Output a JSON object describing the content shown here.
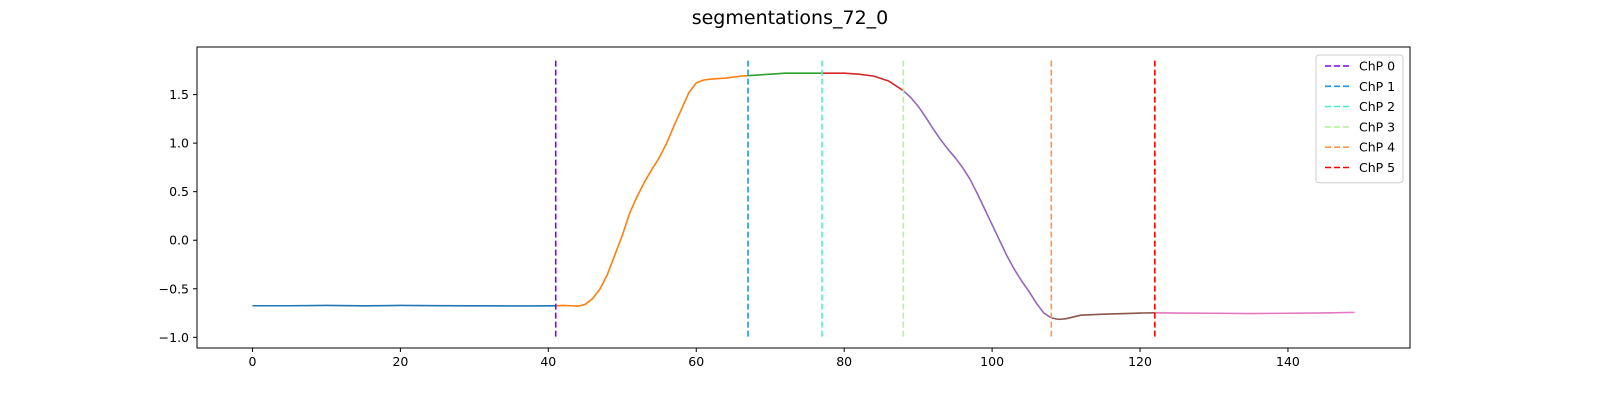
{
  "chart_data": {
    "type": "line",
    "title": "segmentations_72_0",
    "xlabel": "",
    "ylabel": "",
    "xlim": [
      -7.5,
      156.5
    ],
    "ylim": [
      -1.11,
      1.99
    ],
    "xticks": [
      0,
      20,
      40,
      60,
      80,
      100,
      120,
      140
    ],
    "yticks": [
      -1.0,
      -0.5,
      0.0,
      0.5,
      1.0,
      1.5
    ],
    "ytick_labels": [
      "−1.0",
      "−0.5",
      "0.0",
      "0.5",
      "1.0",
      "1.5"
    ],
    "grid": false,
    "legend": {
      "placement": "top-right"
    },
    "segments": [
      {
        "color": "#1f77b4",
        "points": [
          [
            0,
            -0.675
          ],
          [
            5,
            -0.675
          ],
          [
            10,
            -0.672
          ],
          [
            15,
            -0.676
          ],
          [
            20,
            -0.672
          ],
          [
            25,
            -0.674
          ],
          [
            30,
            -0.676
          ],
          [
            35,
            -0.677
          ],
          [
            38,
            -0.677
          ],
          [
            41,
            -0.676
          ]
        ]
      },
      {
        "color": "#ff7f0e",
        "points": [
          [
            41,
            -0.676
          ],
          [
            42,
            -0.672
          ],
          [
            43,
            -0.675
          ],
          [
            44,
            -0.68
          ],
          [
            45,
            -0.66
          ],
          [
            46,
            -0.6
          ],
          [
            47,
            -0.5
          ],
          [
            48,
            -0.35
          ],
          [
            49,
            -0.15
          ],
          [
            50,
            0.05
          ],
          [
            51,
            0.28
          ],
          [
            52,
            0.45
          ],
          [
            53,
            0.6
          ],
          [
            54,
            0.73
          ],
          [
            55,
            0.85
          ],
          [
            56,
            1.0
          ],
          [
            57,
            1.18
          ],
          [
            58,
            1.35
          ],
          [
            59,
            1.52
          ],
          [
            60,
            1.62
          ],
          [
            61,
            1.65
          ],
          [
            62,
            1.66
          ],
          [
            64,
            1.67
          ],
          [
            66,
            1.69
          ],
          [
            67,
            1.695
          ]
        ]
      },
      {
        "color": "#2ca02c",
        "points": [
          [
            67,
            1.695
          ],
          [
            70,
            1.71
          ],
          [
            72,
            1.72
          ],
          [
            75,
            1.72
          ],
          [
            77,
            1.72
          ]
        ]
      },
      {
        "color": "#d62728",
        "points": [
          [
            77,
            1.72
          ],
          [
            80,
            1.72
          ],
          [
            82,
            1.71
          ],
          [
            84,
            1.69
          ],
          [
            86,
            1.64
          ],
          [
            87,
            1.59
          ],
          [
            88,
            1.54
          ]
        ]
      },
      {
        "color": "#9467bd",
        "points": [
          [
            88,
            1.54
          ],
          [
            89,
            1.47
          ],
          [
            90,
            1.38
          ],
          [
            91,
            1.27
          ],
          [
            92,
            1.15
          ],
          [
            93,
            1.04
          ],
          [
            94,
            0.94
          ],
          [
            95,
            0.85
          ],
          [
            96,
            0.75
          ],
          [
            97,
            0.63
          ],
          [
            98,
            0.48
          ],
          [
            99,
            0.32
          ],
          [
            100,
            0.16
          ],
          [
            101,
            0.0
          ],
          [
            102,
            -0.16
          ],
          [
            103,
            -0.3
          ],
          [
            104,
            -0.42
          ],
          [
            105,
            -0.53
          ],
          [
            106,
            -0.65
          ],
          [
            107,
            -0.75
          ],
          [
            108,
            -0.8
          ]
        ]
      },
      {
        "color": "#8c564b",
        "points": [
          [
            108,
            -0.8
          ],
          [
            109,
            -0.815
          ],
          [
            110,
            -0.808
          ],
          [
            112,
            -0.772
          ],
          [
            115,
            -0.762
          ],
          [
            118,
            -0.755
          ],
          [
            120,
            -0.75
          ],
          [
            122,
            -0.748
          ]
        ]
      },
      {
        "color": "#e377c2",
        "points": [
          [
            122,
            -0.748
          ],
          [
            125,
            -0.75
          ],
          [
            130,
            -0.752
          ],
          [
            135,
            -0.755
          ],
          [
            140,
            -0.752
          ],
          [
            145,
            -0.749
          ],
          [
            149,
            -0.743
          ]
        ]
      }
    ],
    "change_points": [
      {
        "name": "ChP 0",
        "x": 41,
        "color": "#8000ff"
      },
      {
        "name": "ChP 1",
        "x": 67,
        "color": "#1996f3"
      },
      {
        "name": "ChP 2",
        "x": 77,
        "color": "#4cf2ce"
      },
      {
        "name": "ChP 3",
        "x": 88,
        "color": "#b2f396"
      },
      {
        "name": "ChP 4",
        "x": 108,
        "color": "#ff964f"
      },
      {
        "name": "ChP 5",
        "x": 122,
        "color": "#ff0000"
      }
    ],
    "change_point_span": [
      -1.0,
      1.85
    ]
  }
}
